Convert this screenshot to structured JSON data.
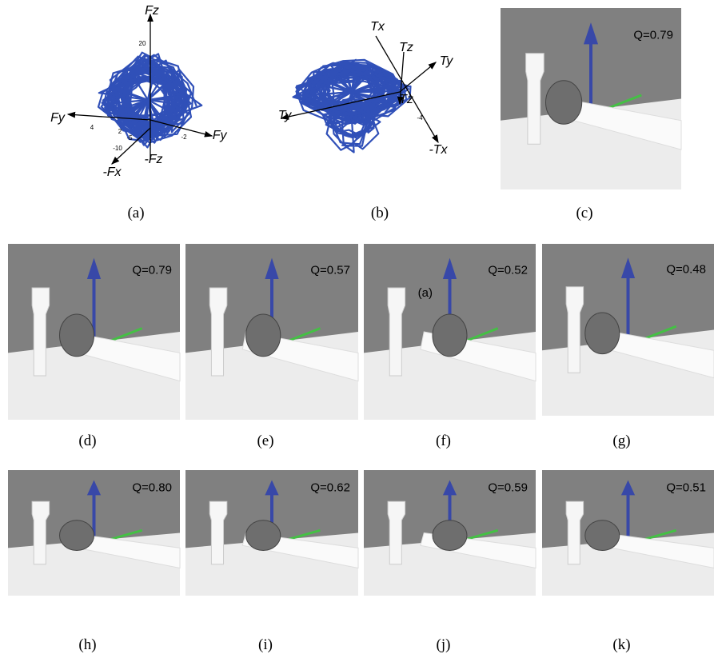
{
  "figure": {
    "panels": [
      {
        "caption": "(a)",
        "labels": [
          "Fz",
          "Fy",
          "-Fy",
          "-Fx",
          "-Fz"
        ],
        "ticks": [
          "20",
          "4",
          "2",
          "-5",
          "-2",
          "-10"
        ]
      },
      {
        "caption": "(b)",
        "labels": [
          "Tx",
          "Tz",
          "Ty",
          "Ty",
          "Tz",
          "-Tx"
        ],
        "ticks": [
          "-4"
        ]
      },
      {
        "caption": "(c)",
        "q": "Q=0.79"
      },
      {
        "caption": "(d)",
        "q": "Q=0.79"
      },
      {
        "caption": "(e)",
        "q": "Q=0.57"
      },
      {
        "caption": "(f)",
        "q": "Q=0.52",
        "annotation": "(a)"
      },
      {
        "caption": "(g)",
        "q": "Q=0.48"
      },
      {
        "caption": "(h)",
        "q": "Q=0.80"
      },
      {
        "caption": "(i)",
        "q": "Q=0.62"
      },
      {
        "caption": "(j)",
        "q": "Q=0.59"
      },
      {
        "caption": "(k)",
        "q": "Q=0.51"
      }
    ]
  }
}
